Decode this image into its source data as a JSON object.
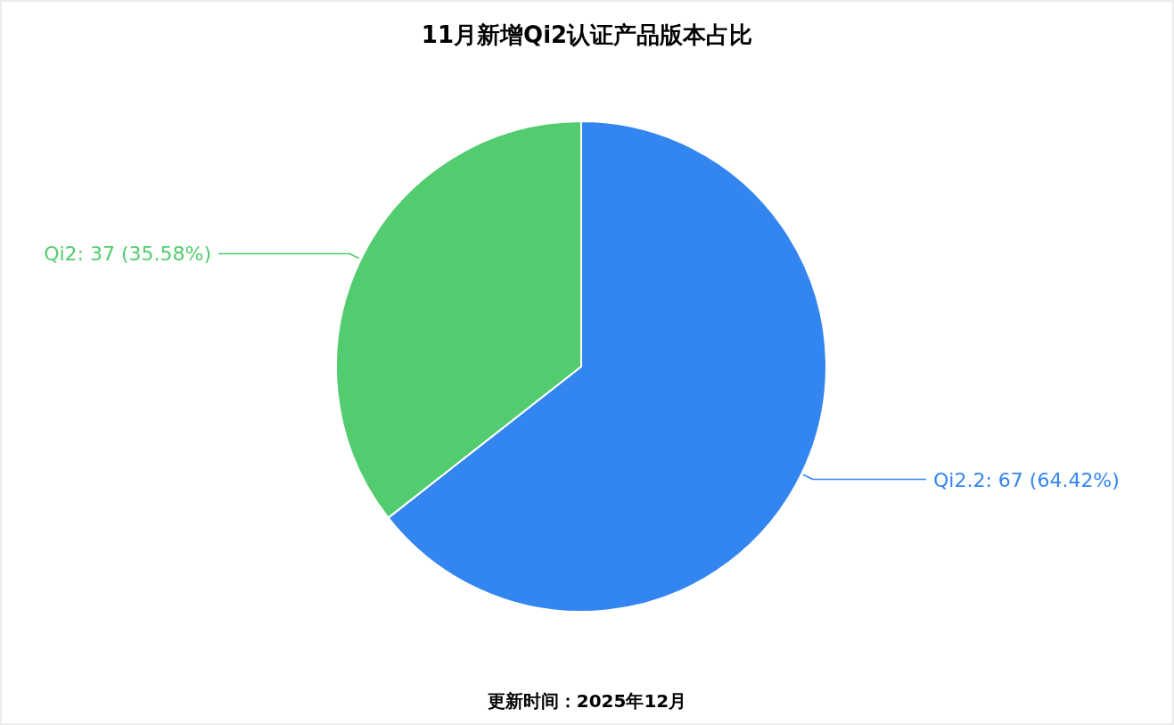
{
  "chart_data": {
    "type": "pie",
    "title": "11月新增Qi2认证产品版本占比",
    "categories": [
      "Qi2.2",
      "Qi2"
    ],
    "values": [
      67,
      37
    ],
    "colors": [
      "#3386f0",
      "#52cc6e"
    ],
    "value_labels": [
      "67 (64.42%)",
      "37 (35.58%)"
    ],
    "annotations": [
      "更新时间：2025年12月"
    ]
  }
}
